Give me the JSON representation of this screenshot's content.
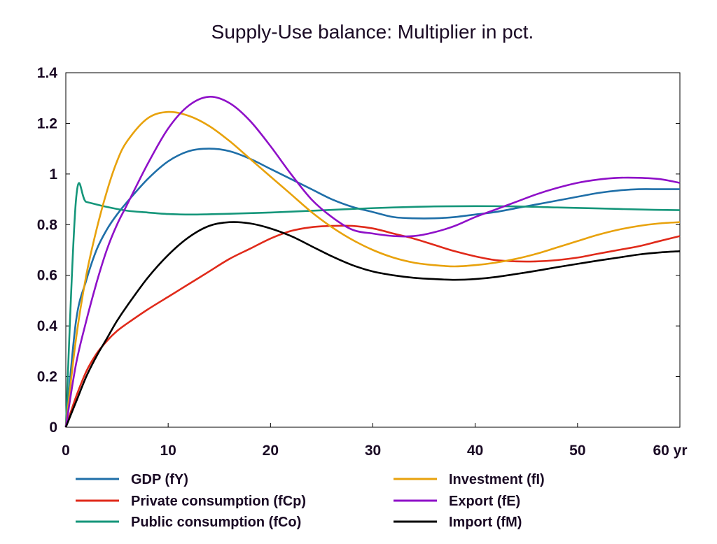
{
  "chart_data": {
    "type": "line",
    "title": "Supply-Use balance: Multiplier in pct.",
    "xlabel": "yr",
    "ylabel": "",
    "xlim": [
      0,
      60
    ],
    "ylim": [
      0,
      1.4
    ],
    "x_ticks": [
      "0",
      "10",
      "20",
      "30",
      "40",
      "50",
      "60 yr"
    ],
    "y_ticks": [
      "0",
      "0.2",
      "0.4",
      "0.6",
      "0.8",
      "1",
      "1.2",
      "1.4"
    ],
    "grid": false,
    "legend_position": "bottom",
    "series": [
      {
        "name": "GDP (fY)",
        "color": "#1f6fa8",
        "x": [
          0,
          1,
          2,
          3,
          4,
          5,
          6,
          8,
          10,
          12,
          14,
          16,
          18,
          20,
          22,
          24,
          26,
          28,
          30,
          32,
          34,
          36,
          38,
          40,
          42,
          44,
          46,
          48,
          50,
          52,
          54,
          56,
          58,
          60
        ],
        "y": [
          0,
          0.42,
          0.58,
          0.7,
          0.78,
          0.84,
          0.89,
          0.98,
          1.05,
          1.09,
          1.1,
          1.09,
          1.06,
          1.02,
          0.98,
          0.94,
          0.9,
          0.87,
          0.85,
          0.83,
          0.825,
          0.825,
          0.83,
          0.84,
          0.85,
          0.865,
          0.88,
          0.895,
          0.91,
          0.925,
          0.935,
          0.94,
          0.94,
          0.94
        ]
      },
      {
        "name": "Private consumption (fCp)",
        "color": "#e02a1a",
        "x": [
          0,
          1,
          2,
          3,
          4,
          5,
          6,
          8,
          10,
          12,
          14,
          16,
          18,
          20,
          22,
          24,
          26,
          28,
          30,
          32,
          34,
          36,
          38,
          40,
          42,
          44,
          46,
          48,
          50,
          52,
          54,
          56,
          58,
          60
        ],
        "y": [
          0,
          0.12,
          0.22,
          0.29,
          0.34,
          0.38,
          0.41,
          0.465,
          0.515,
          0.565,
          0.615,
          0.665,
          0.705,
          0.745,
          0.775,
          0.79,
          0.795,
          0.795,
          0.785,
          0.765,
          0.745,
          0.72,
          0.695,
          0.675,
          0.66,
          0.655,
          0.655,
          0.66,
          0.67,
          0.685,
          0.7,
          0.715,
          0.735,
          0.755
        ]
      },
      {
        "name": "Public consumption (fCo)",
        "color": "#15967a",
        "x": [
          0,
          1,
          2,
          4,
          6,
          8,
          10,
          12,
          14,
          16,
          20,
          24,
          28,
          32,
          36,
          40,
          44,
          48,
          52,
          56,
          60
        ],
        "y": [
          0,
          0.9,
          0.89,
          0.87,
          0.855,
          0.848,
          0.842,
          0.84,
          0.841,
          0.843,
          0.848,
          0.855,
          0.862,
          0.868,
          0.872,
          0.873,
          0.872,
          0.868,
          0.864,
          0.86,
          0.857
        ]
      },
      {
        "name": "Investment (fI)",
        "color": "#e8a20c",
        "x": [
          0,
          1,
          2,
          3,
          4,
          5,
          6,
          8,
          10,
          12,
          14,
          16,
          18,
          20,
          22,
          24,
          26,
          28,
          30,
          32,
          34,
          36,
          38,
          40,
          42,
          44,
          46,
          48,
          50,
          52,
          54,
          56,
          58,
          60
        ],
        "y": [
          0,
          0.35,
          0.6,
          0.78,
          0.93,
          1.05,
          1.13,
          1.22,
          1.245,
          1.23,
          1.19,
          1.13,
          1.06,
          0.99,
          0.92,
          0.85,
          0.79,
          0.74,
          0.7,
          0.67,
          0.65,
          0.64,
          0.635,
          0.64,
          0.65,
          0.665,
          0.685,
          0.71,
          0.735,
          0.76,
          0.78,
          0.795,
          0.805,
          0.81
        ]
      },
      {
        "name": "Export (fE)",
        "color": "#8f10c8",
        "x": [
          0,
          1,
          2,
          3,
          4,
          5,
          6,
          8,
          10,
          12,
          14,
          16,
          18,
          20,
          22,
          24,
          26,
          28,
          30,
          32,
          34,
          36,
          38,
          40,
          42,
          44,
          46,
          48,
          50,
          52,
          54,
          56,
          58,
          60
        ],
        "y": [
          0,
          0.25,
          0.42,
          0.57,
          0.7,
          0.8,
          0.88,
          1.04,
          1.18,
          1.27,
          1.305,
          1.28,
          1.21,
          1.11,
          1.0,
          0.9,
          0.83,
          0.78,
          0.765,
          0.755,
          0.755,
          0.77,
          0.795,
          0.83,
          0.86,
          0.89,
          0.92,
          0.945,
          0.965,
          0.978,
          0.985,
          0.985,
          0.98,
          0.965
        ]
      },
      {
        "name": "Import (fM)",
        "color": "#000000",
        "x": [
          0,
          1,
          2,
          3,
          4,
          5,
          6,
          8,
          10,
          12,
          14,
          16,
          18,
          20,
          22,
          24,
          26,
          28,
          30,
          32,
          34,
          36,
          38,
          40,
          42,
          44,
          46,
          48,
          50,
          52,
          54,
          56,
          58,
          60
        ],
        "y": [
          0,
          0.1,
          0.2,
          0.28,
          0.35,
          0.42,
          0.48,
          0.59,
          0.68,
          0.75,
          0.795,
          0.81,
          0.805,
          0.785,
          0.755,
          0.715,
          0.675,
          0.64,
          0.615,
          0.6,
          0.59,
          0.585,
          0.582,
          0.585,
          0.593,
          0.605,
          0.618,
          0.632,
          0.645,
          0.658,
          0.67,
          0.682,
          0.69,
          0.695
        ]
      }
    ]
  }
}
